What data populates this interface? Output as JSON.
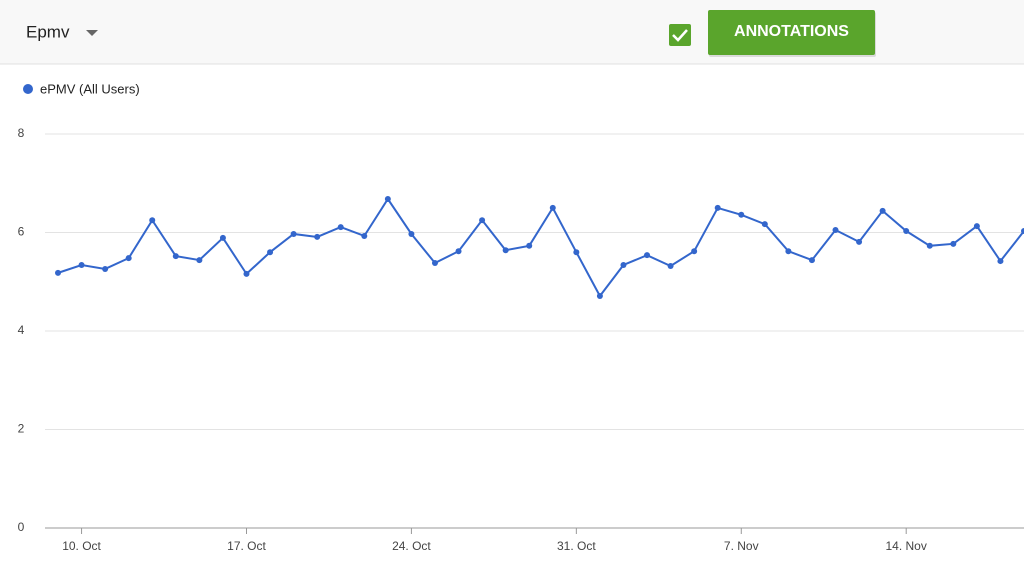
{
  "toolbar": {
    "dropdown": "Epmv",
    "button": "ANNOTATIONS"
  },
  "chart_data": {
    "type": "line",
    "categories": [
      null,
      "10. Oct",
      null,
      null,
      null,
      null,
      null,
      null,
      "17. Oct",
      null,
      null,
      null,
      null,
      null,
      null,
      "24. Oct",
      null,
      null,
      null,
      null,
      null,
      null,
      "31. Oct",
      null,
      null,
      null,
      null,
      null,
      null,
      "7. Nov",
      null,
      null,
      null,
      null,
      null,
      null,
      "14. Nov",
      null,
      null,
      null,
      null,
      null
    ],
    "series": [
      {
        "name": "ePMV (All Users)",
        "color": "#3366cc",
        "values": [
          5.18,
          5.34,
          5.26,
          5.48,
          6.25,
          5.52,
          5.44,
          5.89,
          5.16,
          5.6,
          5.97,
          5.91,
          6.11,
          5.93,
          6.68,
          5.97,
          5.38,
          5.62,
          6.25,
          5.64,
          5.73,
          6.5,
          5.6,
          4.71,
          5.34,
          5.54,
          5.32,
          5.62,
          6.5,
          6.36,
          6.17,
          5.62,
          5.44,
          6.05,
          5.81,
          6.44,
          6.03,
          5.73,
          5.77,
          6.13,
          5.42,
          6.03
        ]
      }
    ],
    "ylim": [
      0,
      8
    ],
    "yticks": [
      0,
      2,
      4,
      6,
      8
    ],
    "grid": true
  }
}
